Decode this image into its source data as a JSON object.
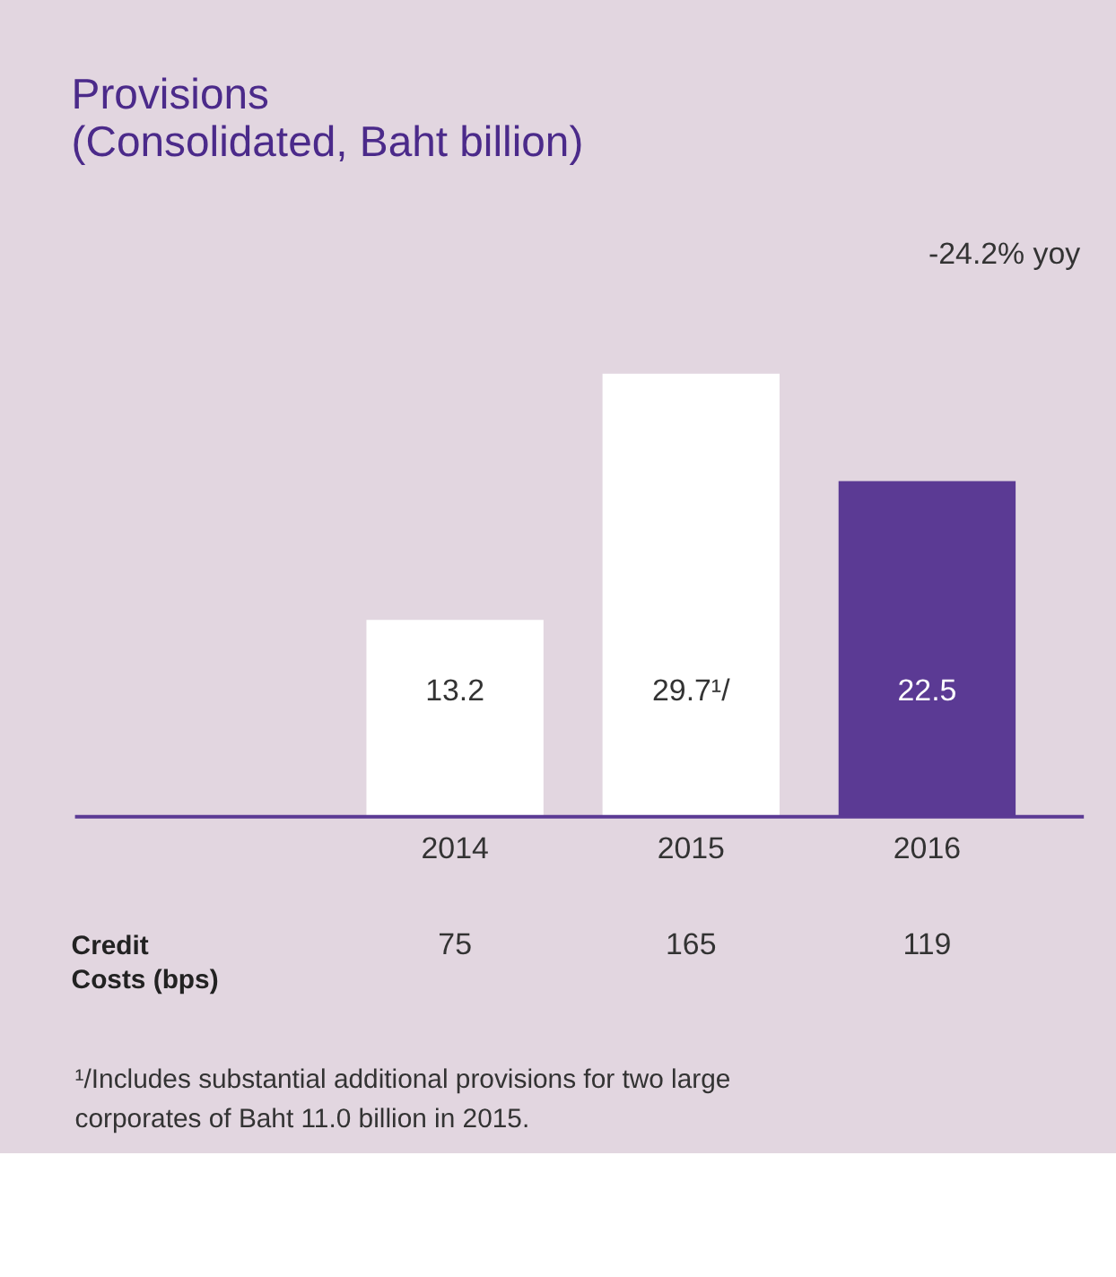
{
  "chart_data": {
    "type": "bar",
    "title": "Provisions",
    "subtitle": "(Consolidated, Baht billion)",
    "categories": [
      "2014",
      "2015",
      "2016"
    ],
    "values": [
      13.2,
      29.7,
      22.5
    ],
    "colors": [
      "#ffffff",
      "#ffffff",
      "#5b3a94"
    ],
    "value_labels": [
      "13.2",
      "29.7¹/",
      "22.5"
    ],
    "annotations": [
      "-24.2% yoy",
      "Credit Costs (bps)",
      "75",
      "165",
      "119",
      "¹/Includes substantial additional provisions for two large corporates of Baht 11.0 billion in 2015."
    ],
    "grid": false
  }
}
